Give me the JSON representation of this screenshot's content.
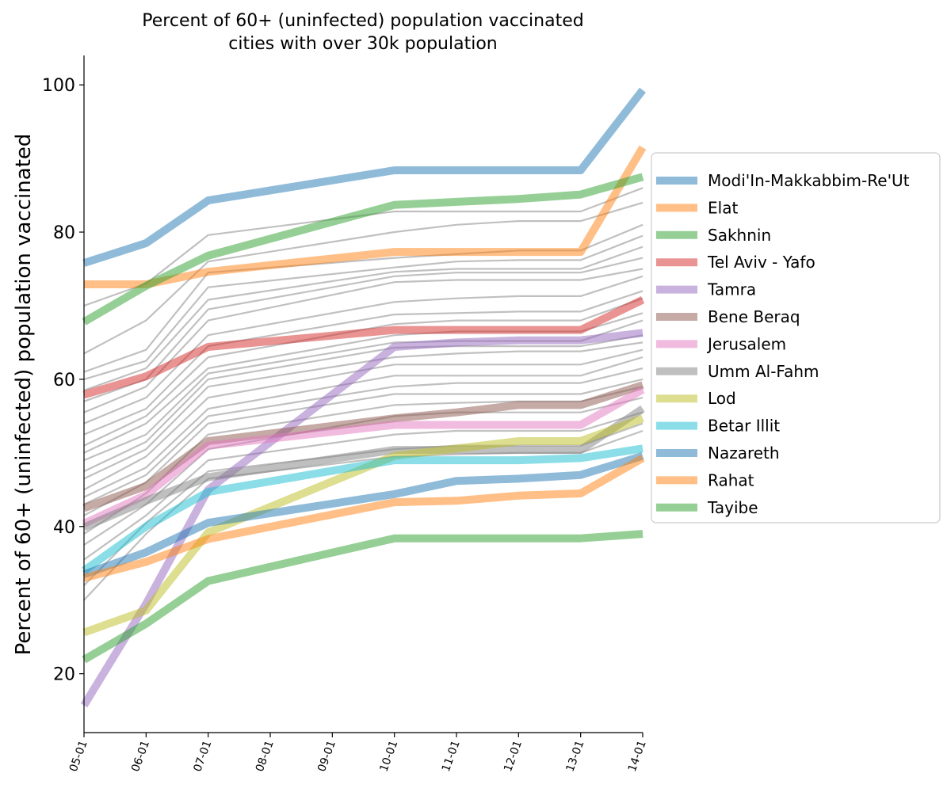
{
  "chart_data": {
    "type": "line",
    "title": "Percent of 60+ (uninfected) population vaccinated",
    "subtitle": "cities with over 30k population",
    "xlabel": "",
    "ylabel": "Percent of 60+ (uninfected) population vaccinated",
    "x": [
      "05-01",
      "06-01",
      "07-01",
      "08-01",
      "09-01",
      "10-01",
      "11-01",
      "12-01",
      "13-01",
      "14-01"
    ],
    "yticks": [
      20,
      40,
      60,
      80,
      100
    ],
    "ylim": [
      12,
      104
    ],
    "grid": false,
    "legend_position": "right",
    "series": [
      {
        "name": "Modi'In-Makkabbim-Re'Ut",
        "color": "#1f77b4",
        "values": [
          75.8,
          78.5,
          84.3,
          null,
          null,
          88.4,
          88.4,
          88.4,
          88.4,
          99.3
        ]
      },
      {
        "name": "Elat",
        "color": "#ff7f0e",
        "values": [
          72.9,
          72.9,
          74.6,
          null,
          null,
          77.3,
          77.3,
          77.3,
          77.3,
          91.5
        ]
      },
      {
        "name": "Sakhnin",
        "color": "#2ca02c",
        "values": [
          67.8,
          72.7,
          76.8,
          null,
          null,
          83.7,
          84.1,
          84.5,
          85.1,
          87.5
        ]
      },
      {
        "name": "Tel Aviv - Yafo",
        "color": "#d62728",
        "values": [
          57.9,
          60.4,
          64.4,
          null,
          null,
          66.7,
          66.7,
          66.7,
          66.7,
          70.8
        ]
      },
      {
        "name": "Tamra",
        "color": "#9467bd",
        "values": [
          15.7,
          29.5,
          45.0,
          null,
          null,
          64.4,
          65.0,
          65.3,
          65.3,
          66.3
        ]
      },
      {
        "name": "Bene Beraq",
        "color": "#8c564b",
        "values": [
          42.5,
          45.5,
          51.6,
          null,
          null,
          54.7,
          55.5,
          56.5,
          56.5,
          59.2
        ]
      },
      {
        "name": "Jerusalem",
        "color": "#e377c2",
        "values": [
          40.4,
          44.3,
          51.0,
          null,
          null,
          53.8,
          53.8,
          53.8,
          53.8,
          58.6
        ]
      },
      {
        "name": "Umm Al-Fahm",
        "color": "#7f7f7f",
        "values": [
          39.9,
          43.5,
          46.7,
          null,
          null,
          50.4,
          50.4,
          50.4,
          50.4,
          56.0
        ]
      },
      {
        "name": "Lod",
        "color": "#bcbd22",
        "values": [
          25.6,
          28.6,
          39.2,
          null,
          null,
          49.6,
          50.6,
          51.6,
          51.6,
          54.7
        ]
      },
      {
        "name": "Betar Illit",
        "color": "#17becf",
        "values": [
          34.0,
          40.0,
          44.7,
          null,
          null,
          49.0,
          49.0,
          49.0,
          49.3,
          50.6
        ]
      },
      {
        "name": "Nazareth",
        "color": "#1f77b4",
        "values": [
          33.5,
          36.5,
          40.5,
          null,
          null,
          44.4,
          46.2,
          46.5,
          47.0,
          49.6
        ]
      },
      {
        "name": "Rahat",
        "color": "#ff7f0e",
        "values": [
          33.0,
          35.2,
          38.3,
          null,
          null,
          43.3,
          43.5,
          44.2,
          44.5,
          49.3
        ]
      },
      {
        "name": "Tayibe",
        "color": "#2ca02c",
        "values": [
          21.9,
          26.8,
          32.6,
          null,
          null,
          38.4,
          38.4,
          38.4,
          38.4,
          39.0
        ]
      }
    ],
    "background_series": [
      [
        70.0,
        73.0,
        79.6,
        null,
        null,
        82.8,
        82.8,
        82.8,
        82.8,
        86.0
      ],
      [
        63.5,
        68.0,
        76.0,
        null,
        null,
        80.0,
        81.0,
        81.5,
        81.5,
        84.0
      ],
      [
        61.0,
        64.0,
        74.5,
        null,
        null,
        76.5,
        77.0,
        77.5,
        77.5,
        81.0
      ],
      [
        60.0,
        62.5,
        72.5,
        null,
        null,
        75.2,
        76.0,
        76.2,
        76.2,
        79.5
      ],
      [
        58.5,
        61.5,
        70.8,
        null,
        null,
        74.6,
        75.0,
        75.0,
        75.0,
        78.0
      ],
      [
        57.0,
        60.0,
        69.5,
        null,
        null,
        74.0,
        74.5,
        74.5,
        74.5,
        76.5
      ],
      [
        55.5,
        59.0,
        68.0,
        null,
        null,
        73.2,
        73.5,
        73.5,
        73.5,
        75.0
      ],
      [
        54.0,
        57.5,
        66.0,
        null,
        null,
        70.5,
        71.0,
        71.3,
        71.3,
        74.0
      ],
      [
        52.5,
        56.0,
        64.5,
        null,
        null,
        68.8,
        69.0,
        69.2,
        69.2,
        72.0
      ],
      [
        51.0,
        55.0,
        63.0,
        null,
        null,
        67.5,
        68.0,
        68.0,
        68.0,
        71.0
      ],
      [
        50.0,
        54.0,
        61.5,
        null,
        null,
        66.0,
        66.5,
        66.5,
        66.5,
        69.0
      ],
      [
        49.0,
        52.5,
        60.8,
        null,
        null,
        65.0,
        65.2,
        65.2,
        65.2,
        68.0
      ],
      [
        47.5,
        51.5,
        60.0,
        null,
        null,
        64.3,
        64.5,
        64.5,
        64.5,
        66.0
      ],
      [
        46.5,
        50.5,
        59.0,
        null,
        null,
        63.0,
        63.5,
        63.8,
        63.8,
        65.0
      ],
      [
        45.0,
        49.5,
        57.5,
        null,
        null,
        62.0,
        62.0,
        62.0,
        62.0,
        64.0
      ],
      [
        44.0,
        48.0,
        56.0,
        null,
        null,
        60.5,
        60.5,
        60.5,
        60.5,
        63.0
      ],
      [
        43.0,
        47.0,
        55.0,
        null,
        null,
        59.0,
        59.5,
        59.5,
        59.5,
        61.5
      ],
      [
        41.5,
        46.0,
        54.0,
        null,
        null,
        58.0,
        58.0,
        58.0,
        58.0,
        60.0
      ],
      [
        39.0,
        44.5,
        52.5,
        null,
        null,
        56.5,
        56.8,
        57.0,
        57.0,
        59.0
      ],
      [
        37.5,
        43.0,
        50.5,
        null,
        null,
        55.0,
        55.5,
        55.5,
        55.5,
        57.5
      ],
      [
        35.5,
        41.5,
        49.0,
        null,
        null,
        52.5,
        53.0,
        53.0,
        53.0,
        55.5
      ],
      [
        32.0,
        40.5,
        47.5,
        null,
        null,
        50.5,
        51.0,
        51.0,
        51.0,
        54.0
      ],
      [
        30.0,
        39.0,
        46.5,
        null,
        null,
        49.5,
        49.8,
        50.0,
        50.0,
        53.0
      ]
    ]
  }
}
